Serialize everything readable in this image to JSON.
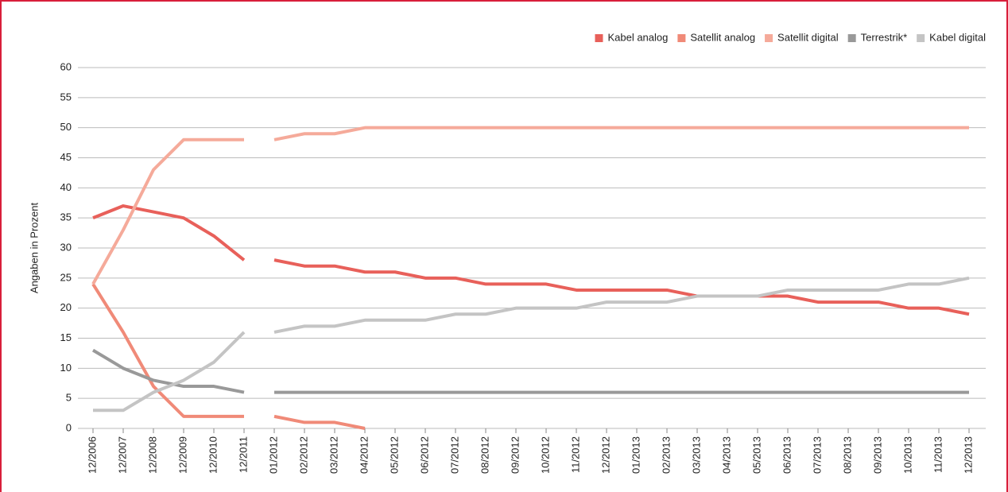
{
  "chart_data": {
    "type": "line",
    "ylabel": "Angaben in Prozent",
    "categories": [
      "12/2006",
      "12/2007",
      "12/2008",
      "12/2009",
      "12/2010",
      "12/2011",
      "01/2012",
      "02/2012",
      "03/2012",
      "04/2012",
      "05/2012",
      "06/2012",
      "07/2012",
      "08/2012",
      "09/2012",
      "10/2012",
      "11/2012",
      "12/2012",
      "01/2013",
      "02/2013",
      "03/2013",
      "04/2013",
      "05/2013",
      "06/2013",
      "07/2013",
      "08/2013",
      "09/2013",
      "10/2013",
      "11/2013",
      "12/2013"
    ],
    "break_after": "12/2011",
    "series": [
      {
        "name": "Kabel analog",
        "color": "#e8605a",
        "values": [
          35,
          37,
          36,
          35,
          32,
          28,
          28,
          27,
          27,
          26,
          26,
          25,
          25,
          24,
          24,
          24,
          23,
          23,
          23,
          23,
          22,
          22,
          22,
          22,
          21,
          21,
          21,
          20,
          20,
          19
        ]
      },
      {
        "name": "Satellit analog",
        "color": "#f08a78",
        "values": [
          24,
          16,
          7,
          2,
          2,
          2,
          2,
          1,
          1,
          0,
          null,
          null,
          null,
          null,
          null,
          null,
          null,
          null,
          null,
          null,
          null,
          null,
          null,
          null,
          null,
          null,
          null,
          null,
          null,
          null
        ]
      },
      {
        "name": "Satellit digital",
        "color": "#f5aa9a",
        "values": [
          24,
          33,
          43,
          48,
          48,
          48,
          48,
          49,
          49,
          50,
          50,
          50,
          50,
          50,
          50,
          50,
          50,
          50,
          50,
          50,
          50,
          50,
          50,
          50,
          50,
          50,
          50,
          50,
          50,
          50
        ]
      },
      {
        "name": "Terrestrik*",
        "color": "#999999",
        "values": [
          13,
          10,
          8,
          7,
          7,
          6,
          6,
          6,
          6,
          6,
          6,
          6,
          6,
          6,
          6,
          6,
          6,
          6,
          6,
          6,
          6,
          6,
          6,
          6,
          6,
          6,
          6,
          6,
          6,
          6
        ]
      },
      {
        "name": "Kabel digital",
        "color": "#c4c4c4",
        "values": [
          3,
          3,
          6,
          8,
          11,
          16,
          16,
          17,
          17,
          18,
          18,
          18,
          19,
          19,
          20,
          20,
          20,
          21,
          21,
          21,
          22,
          22,
          22,
          23,
          23,
          23,
          23,
          24,
          24,
          25
        ]
      }
    ],
    "ylim": [
      0,
      60
    ],
    "yticks": [
      0,
      5,
      10,
      15,
      20,
      25,
      30,
      35,
      40,
      45,
      50,
      55,
      60
    ],
    "grid": true
  }
}
